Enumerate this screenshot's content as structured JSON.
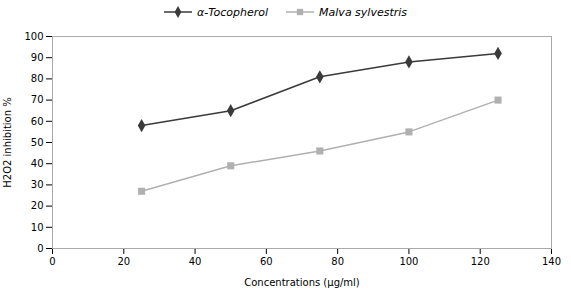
{
  "chart_data": {
    "type": "line",
    "x": [
      25,
      50,
      75,
      100,
      125
    ],
    "series": [
      {
        "name": "α-Tocopherol",
        "color": "#3a3a3a",
        "marker": "diamond",
        "values": [
          58,
          65,
          81,
          88,
          92
        ]
      },
      {
        "name": "Malva sylvestris",
        "color": "#b0b0b0",
        "marker": "square",
        "values": [
          27,
          39,
          46,
          55,
          70
        ]
      }
    ],
    "xlabel": "Concentrations (µg/ml)",
    "ylabel": "H2O2 inhibition %",
    "xlim": [
      0,
      140
    ],
    "ylim": [
      0,
      100
    ],
    "xticks": [
      0,
      20,
      40,
      60,
      80,
      100,
      120,
      140
    ],
    "yticks": [
      0,
      10,
      20,
      30,
      40,
      50,
      60,
      70,
      80,
      90,
      100
    ],
    "grid": false,
    "legend": "top"
  }
}
